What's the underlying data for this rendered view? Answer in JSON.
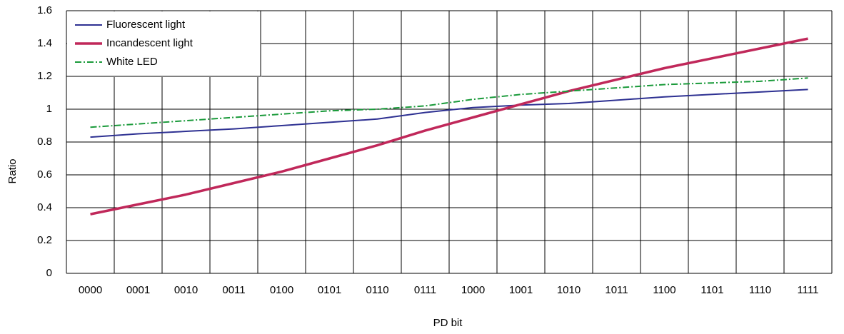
{
  "chart_data": {
    "type": "line",
    "x_label": "PD bit",
    "y_label": "Ratio",
    "categories": [
      "0000",
      "0001",
      "0010",
      "0011",
      "0100",
      "0101",
      "0110",
      "0111",
      "1000",
      "1001",
      "1010",
      "1011",
      "1100",
      "1101",
      "1110",
      "1111"
    ],
    "series": [
      {
        "name": "Fluorescent light",
        "color": "#2e3192",
        "linewidth": 2,
        "linestyle": "solid",
        "values": [
          0.83,
          0.85,
          0.865,
          0.88,
          0.9,
          0.92,
          0.94,
          0.98,
          1.01,
          1.025,
          1.035,
          1.055,
          1.075,
          1.09,
          1.105,
          1.12
        ]
      },
      {
        "name": "Incandescent light",
        "color": "#c0285a",
        "linewidth": 3.5,
        "linestyle": "solid",
        "values": [
          0.36,
          0.42,
          0.48,
          0.55,
          0.62,
          0.7,
          0.78,
          0.87,
          0.95,
          1.03,
          1.11,
          1.18,
          1.25,
          1.31,
          1.37,
          1.43
        ]
      },
      {
        "name": "White LED",
        "color": "#1a9a3a",
        "linewidth": 2,
        "linestyle": "dashdot",
        "values": [
          0.89,
          0.91,
          0.93,
          0.95,
          0.97,
          0.99,
          1.0,
          1.02,
          1.06,
          1.09,
          1.11,
          1.13,
          1.15,
          1.16,
          1.17,
          1.19
        ]
      }
    ],
    "ylim": [
      0,
      1.6
    ],
    "yticks": [
      0,
      0.2,
      0.4,
      0.6,
      0.8,
      1,
      1.2,
      1.4,
      1.6
    ],
    "grid": true,
    "legend": "upper-left"
  }
}
